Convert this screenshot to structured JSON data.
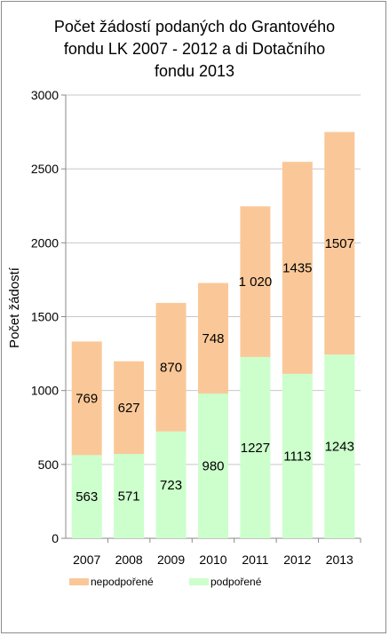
{
  "chart_data": {
    "type": "bar",
    "stacked": true,
    "title_lines": [
      "Počet žádostí podaných do Grantového",
      "fondu LK 2007 - 2012 a di Dotačního",
      "fondu 2013"
    ],
    "ylabel": "Počet žádostí",
    "xlabel": "",
    "ylim": [
      0,
      3000
    ],
    "yticks": [
      "0",
      "500",
      "1000",
      "1500",
      "2000",
      "2500",
      "3000"
    ],
    "ytick_values": [
      0,
      500,
      1000,
      1500,
      2000,
      2500,
      3000
    ],
    "grid": true,
    "legend_position": "bottom",
    "categories": [
      "2007",
      "2008",
      "2009",
      "2010",
      "2011",
      "2012",
      "2013"
    ],
    "series": [
      {
        "name": "podpořené",
        "color": "#ccffcc",
        "values": [
          563,
          571,
          723,
          980,
          1227,
          1113,
          1243
        ],
        "labels": [
          "563",
          "571",
          "723",
          "980",
          "1227",
          "1113",
          "1243"
        ]
      },
      {
        "name": "nepodpořené",
        "color": "#fac898",
        "values": [
          769,
          627,
          870,
          748,
          1020,
          1435,
          1507
        ],
        "labels": [
          "769",
          "627",
          "870",
          "748",
          "1 020",
          "1435",
          "1507"
        ]
      }
    ]
  }
}
